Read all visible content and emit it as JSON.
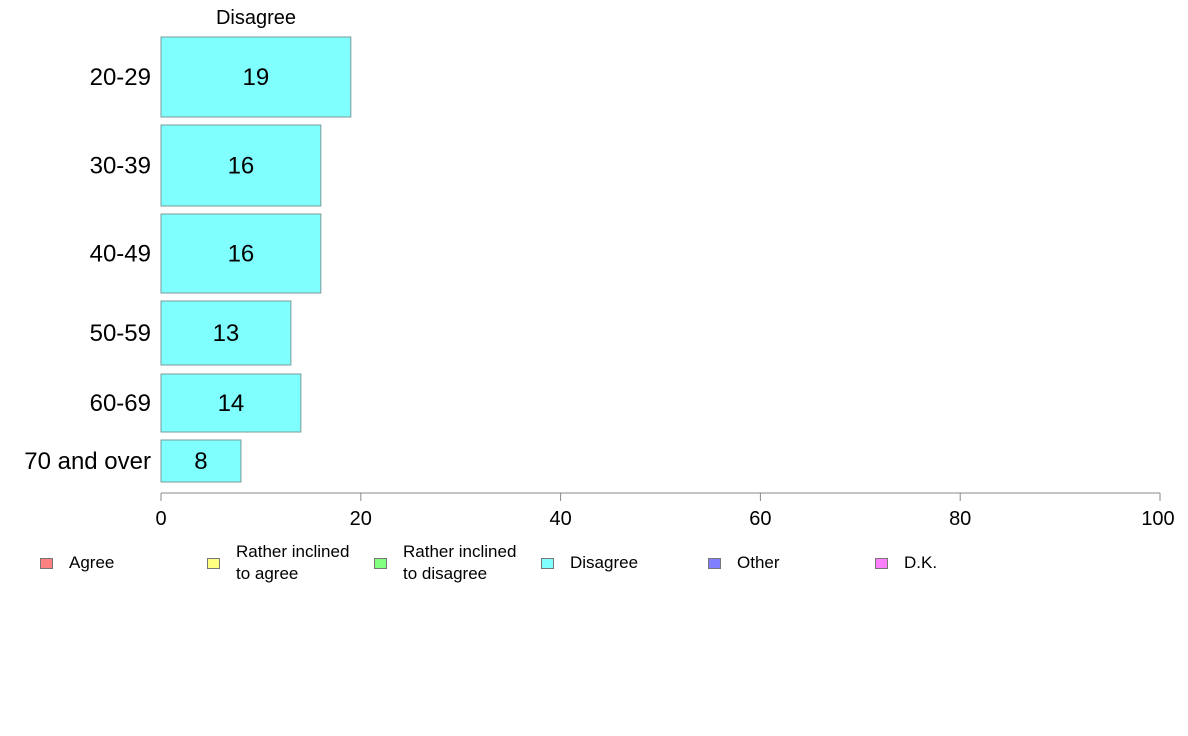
{
  "chart_data": {
    "type": "bar",
    "orientation": "horizontal",
    "title": "Disagree",
    "categories": [
      "20-29",
      "30-39",
      "40-49",
      "50-59",
      "60-69",
      "70 and over"
    ],
    "series": [
      {
        "name": "Disagree",
        "values": [
          19,
          16,
          16,
          13,
          14,
          8
        ],
        "color": "#80ffff"
      }
    ],
    "xlim": [
      0,
      100
    ],
    "xticks": [
      0,
      20,
      40,
      60,
      80,
      100
    ],
    "grid": false,
    "legend_position": "bottom",
    "legend": [
      {
        "label": "Agree",
        "color": "#ff8080"
      },
      {
        "label": "Rather inclined\nto agree",
        "color": "#ffff80"
      },
      {
        "label": "Rather inclined\nto disagree",
        "color": "#80ff80"
      },
      {
        "label": "Disagree",
        "color": "#80ffff"
      },
      {
        "label": "Other",
        "color": "#8080ff"
      },
      {
        "label": "D.K.",
        "color": "#ff80ff"
      }
    ]
  }
}
